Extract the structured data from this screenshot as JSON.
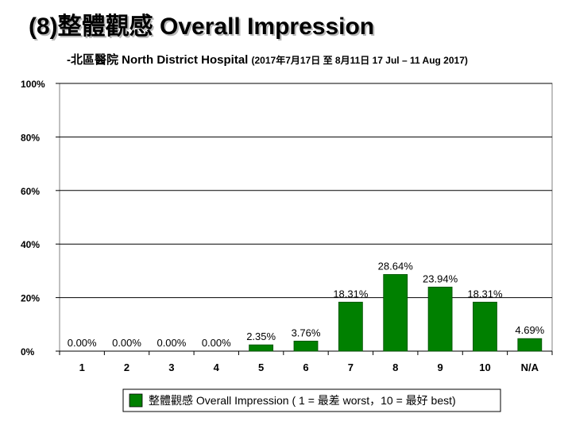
{
  "title": "(8)整體觀感 Overall Impression",
  "subtitle_main": "-北區醫院  North District Hospital",
  "subtitle_period": "(2017年7月17日 至 8月11日 17 Jul – 11 Aug 2017)",
  "colors": {
    "bar": "#008000",
    "bar_stroke": "#004d00",
    "grid": "#000000"
  },
  "chart_data": {
    "type": "bar",
    "title": "(8)整體觀感 Overall Impression",
    "categories": [
      "1",
      "2",
      "3",
      "4",
      "5",
      "6",
      "7",
      "8",
      "9",
      "10",
      "N/A"
    ],
    "series": [
      {
        "name": "整體觀感 Overall Impression ( 1 = 最差 worst，10 = 最好 best)",
        "values": [
          0.0,
          0.0,
          0.0,
          0.0,
          2.35,
          3.76,
          18.31,
          28.64,
          23.94,
          18.31,
          4.69
        ],
        "labels": [
          "0.00%",
          "0.00%",
          "0.00%",
          "0.00%",
          "2.35%",
          "3.76%",
          "18.31%",
          "28.64%",
          "23.94%",
          "18.31%",
          "4.69%"
        ]
      }
    ],
    "yticks": [
      "0%",
      "20%",
      "40%",
      "60%",
      "80%",
      "100%"
    ],
    "ylim": [
      0,
      100
    ],
    "grid": true,
    "legend_position": "bottom"
  }
}
